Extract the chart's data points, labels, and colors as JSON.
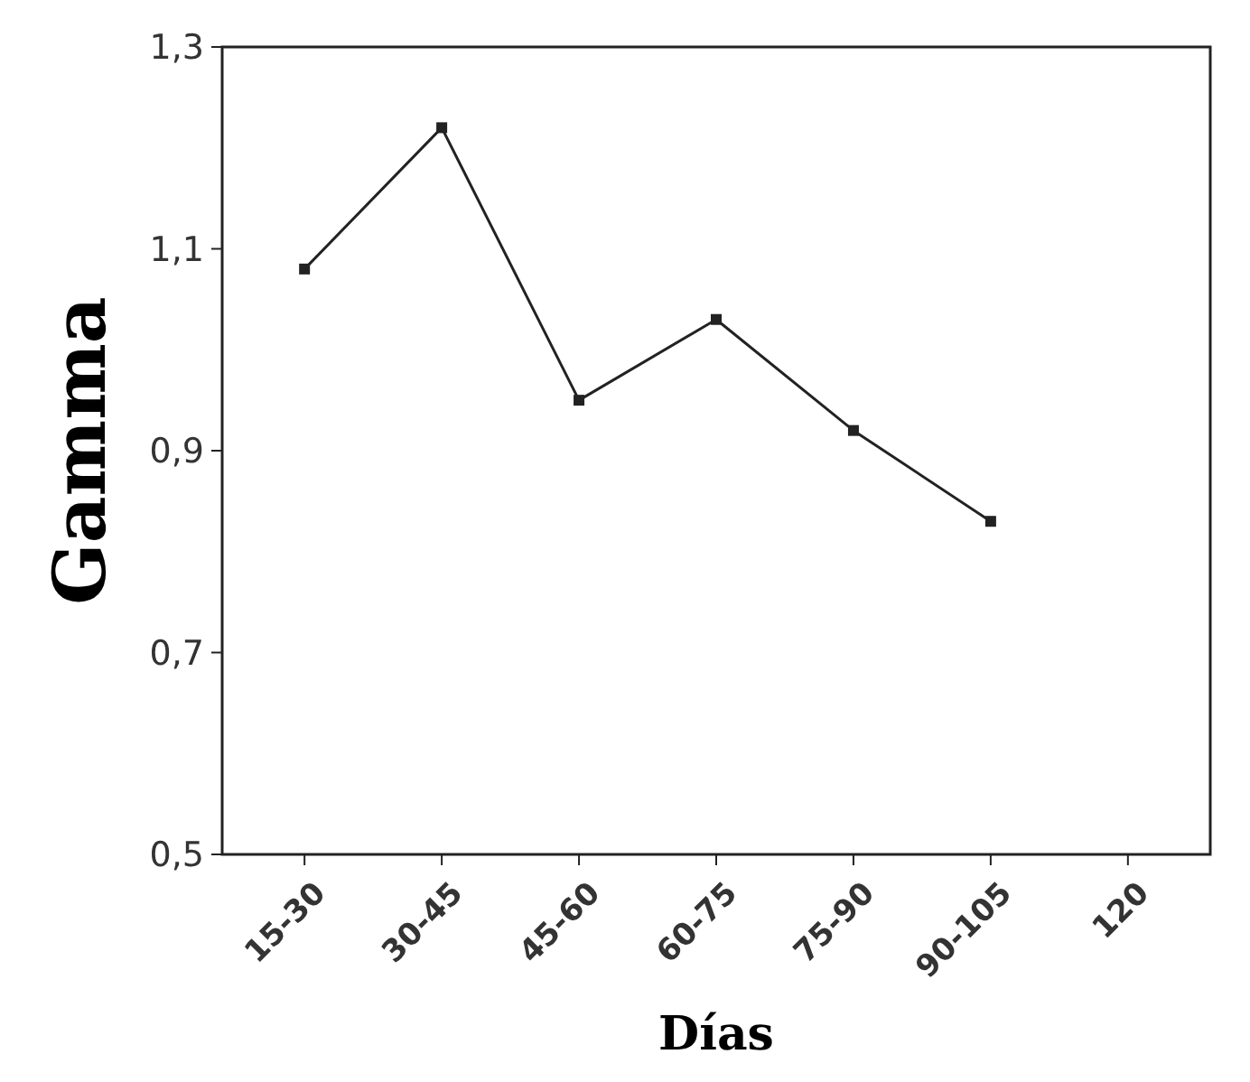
{
  "chart_data": {
    "type": "line",
    "xlabel": "Días",
    "ylabel": "Gamma",
    "categories": [
      "15-30",
      "30-45",
      "45-60",
      "60-75",
      "75-90",
      "90-105",
      "120"
    ],
    "series": [
      {
        "color": "#222222",
        "values": [
          1.08,
          1.22,
          0.95,
          1.03,
          0.92,
          0.83,
          null
        ]
      }
    ],
    "ylim": [
      0.5,
      1.3
    ],
    "yticks": [
      {
        "value": 0.5,
        "label": "0,5"
      },
      {
        "value": 0.7,
        "label": "0,7"
      },
      {
        "value": 0.9,
        "label": "0,9"
      },
      {
        "value": 1.1,
        "label": "1,1"
      },
      {
        "value": 1.3,
        "label": "1,3"
      }
    ],
    "grid": false,
    "marker": "square",
    "line_style": "solid"
  }
}
